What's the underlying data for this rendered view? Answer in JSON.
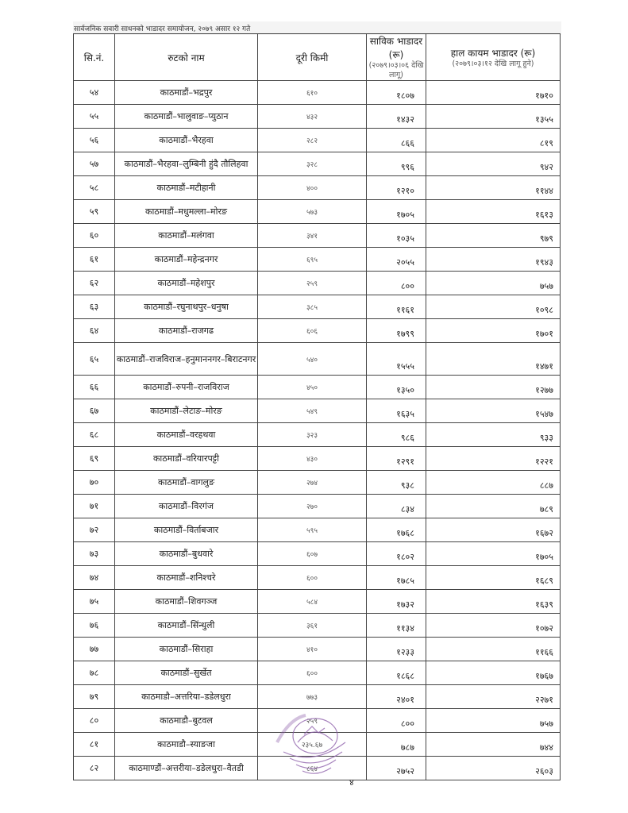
{
  "caption": "सार्वजनिक सवारी साधनको भाडादर समायोजन,  २०७९ असार १२ गते",
  "headers": {
    "sn": "सि.नं.",
    "route": "रुटको नाम",
    "distance": "दूरी किमी",
    "old_fare": "साविक भाडादर (रू)",
    "old_fare_note": "(२०७९।०३।०६ देखि लागू)",
    "new_fare": "हाल कायम भाडादर (रू)",
    "new_fare_note": "(२०७९।०३।१२ देखि लागू हुने)"
  },
  "rows": [
    {
      "sn": "५४",
      "route": "काठमाडौं–भद्रपुर",
      "distance": "६१०",
      "old": "१८०७",
      "new": "१७१०"
    },
    {
      "sn": "५५",
      "route": "काठमाडौं–भालुवाङ–प्युठान",
      "distance": "४३२",
      "old": "१४३२",
      "new": "१३५५"
    },
    {
      "sn": "५६",
      "route": "काठमाडौं–भैरहवा",
      "distance": "२८२",
      "old": "८६६",
      "new": "८१९"
    },
    {
      "sn": "५७",
      "route": "काठमाडौं–भैरहवा–लुम्बिनी हुंदै तौलिहवा",
      "distance": "३२८",
      "old": "९९६",
      "new": "९४२"
    },
    {
      "sn": "५८",
      "route": "काठमाडौं–मटीहानी",
      "distance": "४००",
      "old": "१२१०",
      "new": "११४४"
    },
    {
      "sn": "५९",
      "route": "काठमाडौं–मधुमल्ला–मोरङ",
      "distance": "५७३",
      "old": "१७०५",
      "new": "१६१३"
    },
    {
      "sn": "६०",
      "route": "काठमाडौं–मलंगवा",
      "distance": "३४१",
      "old": "१०३५",
      "new": "९७९"
    },
    {
      "sn": "६१",
      "route": "काठमाडौं–महेन्द्रनगर",
      "distance": "६९५",
      "old": "२०५५",
      "new": "१९४३"
    },
    {
      "sn": "६२",
      "route": "काठमाडौं–महेशपुर",
      "distance": "२५९",
      "old": "८००",
      "new": "७५७"
    },
    {
      "sn": "६३",
      "route": "काठमाडौं–रघुनाथपुर–धनुषा",
      "distance": "३८५",
      "old": "११६१",
      "new": "१०९८"
    },
    {
      "sn": "६४",
      "route": "काठमाडौं–राजगढ",
      "distance": "६०६",
      "old": "१७९९",
      "new": "१७०१"
    },
    {
      "sn": "६५",
      "route": "काठमाडौं–राजविराज–हनुमाननगर–बिराटनगर",
      "distance": "५४०",
      "old": "१५५५",
      "new": "१४७१",
      "tall": true
    },
    {
      "sn": "६६",
      "route": "काठमाडौं–रुपनी–राजविराज",
      "distance": "४५०",
      "old": "१३५०",
      "new": "१२७७"
    },
    {
      "sn": "६७",
      "route": "काठमाडौं–लेटाङ–मोरङ",
      "distance": "५४९",
      "old": "१६३५",
      "new": "१५४७"
    },
    {
      "sn": "६८",
      "route": "काठमाडौं–वरहथवा",
      "distance": "३२३",
      "old": "९८६",
      "new": "९३३"
    },
    {
      "sn": "६९",
      "route": "काठमाडौं–वरियारपट्टी",
      "distance": "४३०",
      "old": "१२९१",
      "new": "१२२१"
    },
    {
      "sn": "७०",
      "route": "काठमाडौं–वागलुङ",
      "distance": "२७४",
      "old": "९३८",
      "new": "८८७"
    },
    {
      "sn": "७१",
      "route": "काठमाडौं–विरगंज",
      "distance": "२७०",
      "old": "८३४",
      "new": "७८९"
    },
    {
      "sn": "७२",
      "route": "काठमाडौं–विर्ताबजार",
      "distance": "५९५",
      "old": "१७६८",
      "new": "१६७२"
    },
    {
      "sn": "७३",
      "route": "काठमाडौं–बुधवारे",
      "distance": "६०७",
      "old": "१८०२",
      "new": "१७०५"
    },
    {
      "sn": "७४",
      "route": "काठमाडौं–शनिश्चरे",
      "distance": "६००",
      "old": "१७८५",
      "new": "१६८९"
    },
    {
      "sn": "७५",
      "route": "काठमाडौं–शिवगञ्ज",
      "distance": "५८४",
      "old": "१७३२",
      "new": "१६३९"
    },
    {
      "sn": "७६",
      "route": "काठमाडौं–सिंन्धुली",
      "distance": "३६१",
      "old": "११३४",
      "new": "१०७२"
    },
    {
      "sn": "७७",
      "route": "काठमाडौं–सिराहा",
      "distance": "४१०",
      "old": "१२३३",
      "new": "११६६"
    },
    {
      "sn": "७८",
      "route": "काठमाडौं–सुर्खेत",
      "distance": "६००",
      "old": "१८६८",
      "new": "१७६७"
    },
    {
      "sn": "७९",
      "route": "काठमाडौ–अत्तरिया–डडेलधुरा",
      "distance": "७७३",
      "old": "२४०१",
      "new": "२२७१"
    },
    {
      "sn": "८०",
      "route": "काठमाडौ–बुटवल",
      "distance": "२५९",
      "old": "८००",
      "new": "७५७"
    },
    {
      "sn": "८१",
      "route": "काठमाडौ–स्याङजा",
      "distance": "२३५.६७",
      "old": "७८७",
      "new": "७४४"
    },
    {
      "sn": "८२",
      "route": "काठमाण्डौं–अत्तरीया–डडेलधुरा–वैतडी",
      "distance": "८६४",
      "old": "२७५२",
      "new": "२६०३"
    }
  ],
  "stamp_text": "नेपाल सरकार भौतिक पूर्वाधार तथा यातायात मन्त्रालय यातायात व्यवस्था विभाग मीनभवन, काठमाडौं",
  "stamp_color": "#8a5aa8",
  "page_number": "४"
}
